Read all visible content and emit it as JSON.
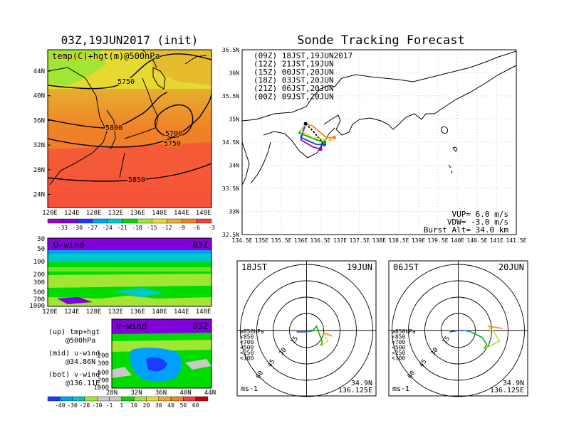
{
  "left_panel": {
    "title": "03Z,19JUN2017 (init)",
    "map_label": "temp(C)+hgt(m)@500hPa",
    "contours": [
      "5750",
      "5800",
      "5700",
      "5750",
      "5850"
    ],
    "lat_ticks": [
      "44N",
      "40N",
      "36N",
      "32N",
      "28N",
      "24N"
    ],
    "lon_ticks": [
      "120E",
      "124E",
      "128E",
      "132E",
      "136E",
      "140E",
      "144E",
      "148E"
    ],
    "temp_colorbar": [
      "-33",
      "-30",
      "-27",
      "-24",
      "-21",
      "-18",
      "-15",
      "-12",
      "-9",
      "-6",
      "-3"
    ],
    "temp_colors": [
      "#a000c8",
      "#8200dc",
      "#1e3cff",
      "#00a0ff",
      "#00c8c8",
      "#00dc00",
      "#a0e632",
      "#e6dc32",
      "#e6af2d",
      "#f08228",
      "#fa3c3c"
    ]
  },
  "u_wind": {
    "label": "U-wind",
    "time": "03Z",
    "p_ticks": [
      "30",
      "50",
      "100",
      "200",
      "300",
      "500",
      "700",
      "1000"
    ],
    "lon_ticks": [
      "120E",
      "124E",
      "128E",
      "132E",
      "136E",
      "140E",
      "144E",
      "148E"
    ]
  },
  "v_wind": {
    "label": "V-wind",
    "time": "03Z",
    "p_ticks": [
      "200",
      "300",
      "500",
      "700",
      "1000"
    ],
    "lat_ticks": [
      "28N",
      "32N",
      "36N",
      "40N",
      "44N"
    ]
  },
  "legend_text": {
    "up": "(up) tmp+hgt",
    "up2": "@500hPa",
    "mid": "(mid) u-wind",
    "mid2": "@34.86N",
    "bot": "(bot) v-wind",
    "bot2": "@136.11E"
  },
  "wind_colorbar": [
    "-40",
    "-30",
    "-20",
    "-10",
    "-1",
    "1",
    "10",
    "20",
    "30",
    "40",
    "50",
    "60"
  ],
  "wind_colors": [
    "#1e3cff",
    "#00a0ff",
    "#00c8c8",
    "#a0e632",
    "#c8c8c8",
    "#c8c8c8",
    "#00dc00",
    "#a0e632",
    "#e6dc32",
    "#e6af2d",
    "#f08228",
    "#fa3c3c",
    "#c80000"
  ],
  "forecast": {
    "title": "Sonde Tracking Forecast",
    "runs": [
      {
        "label": "(09Z)  18JST,19JUN2017",
        "color": "#000000"
      },
      {
        "label": "(12Z)  21JST,19JUN",
        "color": "#a000c8"
      },
      {
        "label": "(15Z)  00JST,20JUN",
        "color": "#1e3cff"
      },
      {
        "label": "(18Z)  03JST,20JUN",
        "color": "#00b400"
      },
      {
        "label": "(21Z)  06JST,20JUN",
        "color": "#e6dc32"
      },
      {
        "label": "(00Z)  09JST,20JUN",
        "color": "#f08228"
      }
    ],
    "lat_ticks": [
      "36.5N",
      "36N",
      "35.5N",
      "35N",
      "34.5N",
      "34N",
      "33.5N",
      "33N",
      "32.5N"
    ],
    "lon_ticks": [
      "134.5E",
      "135E",
      "135.5E",
      "136E",
      "136.5E",
      "137E",
      "137.5E",
      "138E",
      "138.5E",
      "139E",
      "139.5E",
      "140E",
      "140.5E",
      "141E",
      "141.5E"
    ],
    "vup": "VUP=  6.0 m/s",
    "vdw": "VDW= -3.0 m/s",
    "burst": "Burst Alt= 34.0 km"
  },
  "hodo1": {
    "time": "18JST",
    "date": "19JUN",
    "lat": "34.9N",
    "lon": "136.125E",
    "unit": "ms-1",
    "ring_labels": [
      "15",
      "30",
      "45",
      "60"
    ],
    "levels": [
      {
        "label": "≥850hPa",
        "color": "#fa3c3c"
      },
      {
        "label": "<850",
        "color": "#f08228"
      },
      {
        "label": "<700",
        "color": "#e6dc32"
      },
      {
        "label": "<500",
        "color": "#00b400"
      },
      {
        "label": "<250",
        "color": "#00a0ff"
      },
      {
        "label": "<100",
        "color": "#1e3cff"
      }
    ]
  },
  "hodo2": {
    "time": "06JST",
    "date": "20JUN",
    "lat": "34.9N",
    "lon": "136.125E",
    "unit": "ms-1",
    "ring_labels": [
      "15",
      "30",
      "45",
      "60"
    ],
    "levels": [
      {
        "label": "≥850hPa",
        "color": "#fa3c3c"
      },
      {
        "label": "<850",
        "color": "#f08228"
      },
      {
        "label": "<700",
        "color": "#e6dc32"
      },
      {
        "label": "<500",
        "color": "#00b400"
      },
      {
        "label": "<250",
        "color": "#00a0ff"
      },
      {
        "label": "<100",
        "color": "#1e3cff"
      }
    ]
  },
  "chart_data": [
    {
      "type": "heatmap",
      "title": "03Z,19JUN2017 (init)",
      "variable": "temp(C)+hgt(m)@500hPa",
      "x_range": [
        "120E",
        "150E"
      ],
      "y_range": [
        "22N",
        "48N"
      ],
      "contour_labels": [
        5750,
        5800,
        5700,
        5750,
        5850
      ],
      "colorbar": [
        -33,
        -30,
        -27,
        -24,
        -21,
        -18,
        -15,
        -12,
        -9,
        -6,
        -3
      ]
    },
    {
      "type": "heatmap",
      "title": "U-wind",
      "time": "03Z",
      "x_range": [
        "120E",
        "150E"
      ],
      "y_levels_hPa": [
        30,
        50,
        100,
        200,
        300,
        500,
        700,
        1000
      ]
    },
    {
      "type": "heatmap",
      "title": "V-wind",
      "time": "03Z",
      "x_range": [
        "28N",
        "44N"
      ],
      "y_levels_hPa": [
        200,
        300,
        500,
        700,
        1000
      ],
      "colorbar": [
        -40,
        -30,
        -20,
        -10,
        -1,
        1,
        10,
        20,
        30,
        40,
        50,
        60
      ]
    },
    {
      "type": "line",
      "title": "Sonde Tracking Forecast",
      "xlim": [
        134.5,
        141.5
      ],
      "ylim": [
        32.5,
        36.5
      ],
      "series": [
        {
          "name": "(09Z)  18JST,19JUN2017",
          "x": [
            136.12,
            136.3,
            136.55,
            136.5
          ],
          "y": [
            34.9,
            34.75,
            34.5,
            34.35
          ]
        },
        {
          "name": "(12Z)  21JST,19JUN",
          "x": [
            136.12,
            136.0,
            136.3,
            136.5
          ],
          "y": [
            34.9,
            34.55,
            34.4,
            34.35
          ]
        },
        {
          "name": "(15Z)  00JST,20JUN",
          "x": [
            136.12,
            136.0,
            136.4,
            136.6
          ],
          "y": [
            34.9,
            34.6,
            34.45,
            34.45
          ]
        },
        {
          "name": "(18Z)  03JST,20JUN",
          "x": [
            136.12,
            135.95,
            136.4,
            136.6
          ],
          "y": [
            34.9,
            34.7,
            34.55,
            34.5
          ]
        },
        {
          "name": "(21Z)  06JST,20JUN",
          "x": [
            136.12,
            136.0,
            136.3,
            136.75
          ],
          "y": [
            34.9,
            34.75,
            34.6,
            34.55
          ]
        },
        {
          "name": "(00Z)  09JST,20JUN",
          "x": [
            136.12,
            136.3,
            136.65,
            136.85
          ],
          "y": [
            34.9,
            34.85,
            34.6,
            34.6
          ]
        }
      ]
    }
  ]
}
